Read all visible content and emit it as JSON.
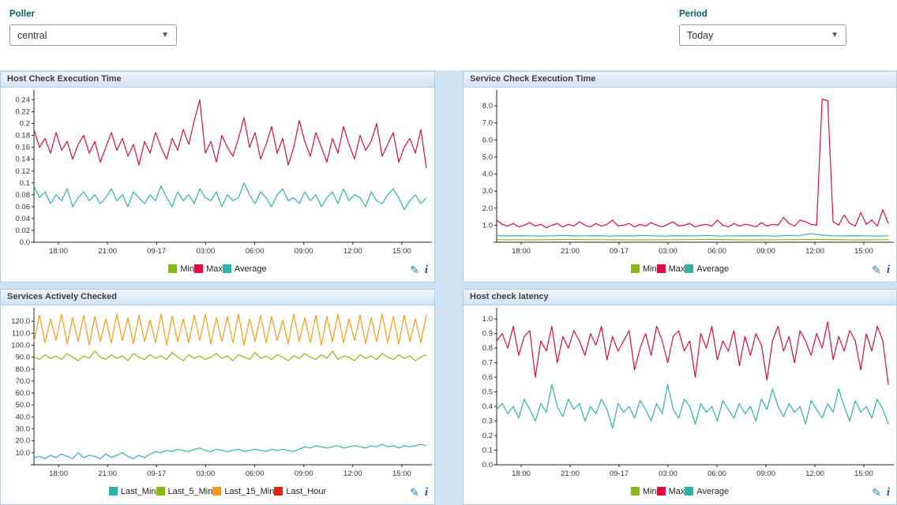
{
  "filters": {
    "poller": {
      "label": "Poller",
      "value": "central"
    },
    "period": {
      "label": "Period",
      "value": "Today"
    }
  },
  "panel_icons": {
    "edit": "✎",
    "info": "i"
  },
  "xticks": {
    "labels": [
      "18:00",
      "21:00",
      "09-17",
      "03:00",
      "06:00",
      "09:00",
      "12:00",
      "15:00"
    ],
    "positions": [
      0.0625,
      0.1875,
      0.3125,
      0.4375,
      0.5625,
      0.6875,
      0.8125,
      0.9375
    ]
  },
  "chart_data": [
    {
      "type": "line",
      "title": "Host Check Execution Time",
      "ylim": [
        0,
        0.25
      ],
      "yticks": {
        "values": [
          0,
          0.02,
          0.04,
          0.06,
          0.08,
          0.1,
          0.12,
          0.14,
          0.16,
          0.18,
          0.2,
          0.22,
          0.24
        ],
        "labels": [
          "0.0",
          "0.02",
          "0.04",
          "0.06",
          "0.08",
          "0.1",
          "0.12",
          "0.14",
          "0.16",
          "0.18",
          "0.2",
          "0.22",
          "0.24"
        ]
      },
      "series": [
        {
          "name": "Min",
          "color": "#88b917",
          "values": []
        },
        {
          "name": "Max",
          "color": "#e00b3d",
          "values": [
            0.19,
            0.16,
            0.175,
            0.15,
            0.185,
            0.155,
            0.17,
            0.14,
            0.165,
            0.18,
            0.15,
            0.17,
            0.135,
            0.16,
            0.185,
            0.155,
            0.175,
            0.145,
            0.165,
            0.13,
            0.17,
            0.15,
            0.185,
            0.16,
            0.14,
            0.175,
            0.155,
            0.19,
            0.165,
            0.205,
            0.24,
            0.15,
            0.17,
            0.135,
            0.18,
            0.16,
            0.145,
            0.175,
            0.21,
            0.16,
            0.185,
            0.14,
            0.165,
            0.195,
            0.15,
            0.175,
            0.13,
            0.16,
            0.205,
            0.17,
            0.145,
            0.185,
            0.16,
            0.135,
            0.175,
            0.15,
            0.195,
            0.165,
            0.14,
            0.18,
            0.155,
            0.17,
            0.2,
            0.145,
            0.165,
            0.185,
            0.135,
            0.16,
            0.175,
            0.15,
            0.19,
            0.125
          ]
        },
        {
          "name": "Average",
          "color": "#2fb2a8",
          "values": [
            0.095,
            0.075,
            0.085,
            0.065,
            0.08,
            0.07,
            0.09,
            0.06,
            0.075,
            0.085,
            0.07,
            0.08,
            0.065,
            0.075,
            0.09,
            0.07,
            0.08,
            0.06,
            0.085,
            0.075,
            0.065,
            0.08,
            0.07,
            0.095,
            0.075,
            0.06,
            0.085,
            0.07,
            0.08,
            0.065,
            0.09,
            0.075,
            0.07,
            0.085,
            0.06,
            0.08,
            0.07,
            0.075,
            0.1,
            0.08,
            0.065,
            0.085,
            0.075,
            0.06,
            0.08,
            0.09,
            0.07,
            0.075,
            0.065,
            0.085,
            0.07,
            0.08,
            0.06,
            0.075,
            0.085,
            0.065,
            0.09,
            0.07,
            0.08,
            0.075,
            0.06,
            0.085,
            0.07,
            0.065,
            0.08,
            0.09,
            0.075,
            0.055,
            0.07,
            0.08,
            0.065,
            0.075
          ]
        }
      ]
    },
    {
      "type": "line",
      "title": "Service Check Execution Time",
      "ylim": [
        0,
        8.7
      ],
      "yticks": {
        "values": [
          1,
          2,
          3,
          4,
          5,
          6,
          7,
          8
        ],
        "labels": [
          "1.0",
          "2.0",
          "3.0",
          "4.0",
          "5.0",
          "6.0",
          "7.0",
          "8.0"
        ]
      },
      "series": [
        {
          "name": "Min",
          "color": "#88b917",
          "values": [
            0.15,
            0.14,
            0.16,
            0.15,
            0.14,
            0.15,
            0.16,
            0.14,
            0.15,
            0.16,
            0.14,
            0.15
          ]
        },
        {
          "name": "Max",
          "color": "#e00b3d",
          "values": [
            1.3,
            1.05,
            0.95,
            1.1,
            0.9,
            1.0,
            1.15,
            0.95,
            1.05,
            0.85,
            1.0,
            1.1,
            0.9,
            1.05,
            0.95,
            1.2,
            1.0,
            0.9,
            1.1,
            0.95,
            1.05,
            1.3,
            0.95,
            1.0,
            1.1,
            0.9,
            1.05,
            0.95,
            1.15,
            1.0,
            0.9,
            1.05,
            1.2,
            0.95,
            1.0,
            1.1,
            0.9,
            1.0,
            1.05,
            0.95,
            1.3,
            1.0,
            0.9,
            1.1,
            0.95,
            1.05,
            1.0,
            0.9,
            1.15,
            0.95,
            1.05,
            1.0,
            1.45,
            1.1,
            0.95,
            1.3,
            1.2,
            1.05,
            1.0,
            8.4,
            8.3,
            1.2,
            1.0,
            1.6,
            1.1,
            0.95,
            1.75,
            1.05,
            1.3,
            0.95,
            1.9,
            1.1
          ]
        },
        {
          "name": "Average",
          "color": "#2fb2a8",
          "values": [
            0.38,
            0.37,
            0.39,
            0.38,
            0.36,
            0.38,
            0.4,
            0.37,
            0.38,
            0.39,
            0.36,
            0.38,
            0.37,
            0.4,
            0.38,
            0.36,
            0.39,
            0.37,
            0.38,
            0.4,
            0.36,
            0.38,
            0.37,
            0.39,
            0.38,
            0.36,
            0.4,
            0.38,
            0.5,
            0.42,
            0.38,
            0.37,
            0.39,
            0.38,
            0.36,
            0.38
          ]
        }
      ]
    },
    {
      "type": "line",
      "title": "Services Actively Checked",
      "ylim": [
        0,
        128
      ],
      "yticks": {
        "values": [
          10,
          20,
          30,
          40,
          50,
          60,
          70,
          80,
          90,
          100,
          110,
          120
        ],
        "labels": [
          "10.0",
          "20.0",
          "30.0",
          "40.0",
          "50.0",
          "60.0",
          "70.0",
          "80.0",
          "90.0",
          "100.0",
          "110.0",
          "120.0"
        ]
      },
      "series": [
        {
          "name": "Last_Min",
          "color": "#2fb2a8",
          "values": [
            6,
            7,
            5,
            8,
            6,
            9,
            7,
            5,
            10,
            6,
            8,
            7,
            5,
            9,
            6,
            8,
            10,
            7,
            5,
            8,
            6,
            9,
            11,
            10,
            12,
            11,
            13,
            12,
            11,
            13,
            14,
            12,
            11,
            13,
            12,
            11,
            12,
            13,
            11,
            12,
            13,
            12,
            11,
            13,
            12,
            13,
            12,
            11,
            13,
            15,
            14,
            16,
            15,
            14,
            15,
            16,
            14,
            15,
            16,
            15,
            14,
            16,
            15,
            17,
            15,
            16,
            14,
            16,
            15,
            16,
            17,
            16
          ]
        },
        {
          "name": "Last_5_Min",
          "color": "#88b917",
          "values": [
            90,
            88,
            92,
            89,
            91,
            88,
            93,
            90,
            87,
            91,
            89,
            95,
            90,
            88,
            92,
            89,
            91,
            87,
            93,
            90,
            88,
            92,
            89,
            91,
            88,
            94,
            90,
            87,
            92,
            89,
            91,
            88,
            90,
            93,
            89,
            91,
            87,
            92,
            90,
            88,
            94,
            89,
            91,
            88,
            92,
            90,
            87,
            91,
            89,
            93,
            90,
            88,
            92,
            89,
            95,
            88,
            91,
            90,
            87,
            92,
            89,
            91,
            88,
            93,
            90,
            88,
            92,
            89,
            91,
            87,
            90,
            92
          ]
        },
        {
          "name": "Last_15_Min",
          "color": "#ff9913",
          "values": [
            103,
            125,
            102,
            122,
            104,
            126,
            101,
            123,
            103,
            125,
            100,
            124,
            103,
            122,
            102,
            126,
            104,
            123,
            101,
            125,
            103,
            121,
            102,
            126,
            100,
            124,
            103,
            122,
            102,
            125,
            104,
            126,
            101,
            123,
            103,
            124,
            102,
            126,
            100,
            122,
            103,
            125,
            102,
            124,
            104,
            121,
            101,
            126,
            103,
            123,
            102,
            125,
            100,
            124,
            103,
            126,
            102,
            122,
            104,
            125,
            101,
            123,
            103,
            126,
            102,
            124,
            101,
            125,
            103,
            122,
            102,
            126
          ]
        },
        {
          "name": "Last_Hour",
          "color": "#e32212",
          "values": []
        }
      ]
    },
    {
      "type": "line",
      "title": "Host check latency",
      "ylim": [
        0,
        1.05
      ],
      "yticks": {
        "values": [
          0,
          0.1,
          0.2,
          0.3,
          0.4,
          0.5,
          0.6,
          0.7,
          0.8,
          0.9,
          1.0
        ],
        "labels": [
          "0.0",
          "0.1",
          "0.2",
          "0.3",
          "0.4",
          "0.5",
          "0.6",
          "0.7",
          "0.8",
          "0.9",
          "1.0"
        ]
      },
      "series": [
        {
          "name": "Min",
          "color": "#88b917",
          "values": []
        },
        {
          "name": "Max",
          "color": "#e00b3d",
          "values": [
            0.85,
            0.9,
            0.8,
            0.95,
            0.75,
            0.88,
            0.92,
            0.6,
            0.85,
            0.78,
            0.95,
            0.7,
            0.88,
            0.8,
            0.92,
            0.85,
            0.75,
            0.9,
            0.82,
            0.95,
            0.72,
            0.88,
            0.78,
            0.85,
            0.92,
            0.65,
            0.8,
            0.9,
            0.75,
            0.95,
            0.85,
            0.7,
            0.88,
            0.92,
            0.78,
            0.85,
            0.6,
            0.9,
            0.8,
            0.95,
            0.72,
            0.85,
            0.78,
            0.92,
            0.68,
            0.88,
            0.75,
            0.9,
            0.82,
            0.58,
            0.85,
            0.95,
            0.78,
            0.88,
            0.7,
            0.92,
            0.85,
            0.75,
            0.9,
            0.8,
            0.98,
            0.72,
            0.88,
            0.78,
            0.92,
            0.85,
            0.65,
            0.9,
            0.78,
            0.95,
            0.85,
            0.55
          ]
        },
        {
          "name": "Average",
          "color": "#2fb2a8",
          "values": [
            0.38,
            0.42,
            0.35,
            0.4,
            0.32,
            0.45,
            0.38,
            0.3,
            0.42,
            0.36,
            0.55,
            0.4,
            0.33,
            0.45,
            0.38,
            0.42,
            0.3,
            0.4,
            0.35,
            0.45,
            0.38,
            0.25,
            0.42,
            0.36,
            0.4,
            0.32,
            0.44,
            0.38,
            0.3,
            0.42,
            0.35,
            0.55,
            0.38,
            0.32,
            0.45,
            0.4,
            0.28,
            0.42,
            0.36,
            0.4,
            0.3,
            0.44,
            0.38,
            0.32,
            0.42,
            0.35,
            0.4,
            0.3,
            0.45,
            0.38,
            0.52,
            0.4,
            0.33,
            0.42,
            0.36,
            0.4,
            0.28,
            0.44,
            0.38,
            0.32,
            0.42,
            0.36,
            0.52,
            0.4,
            0.3,
            0.44,
            0.36,
            0.4,
            0.32,
            0.45,
            0.38,
            0.28
          ]
        }
      ]
    }
  ]
}
